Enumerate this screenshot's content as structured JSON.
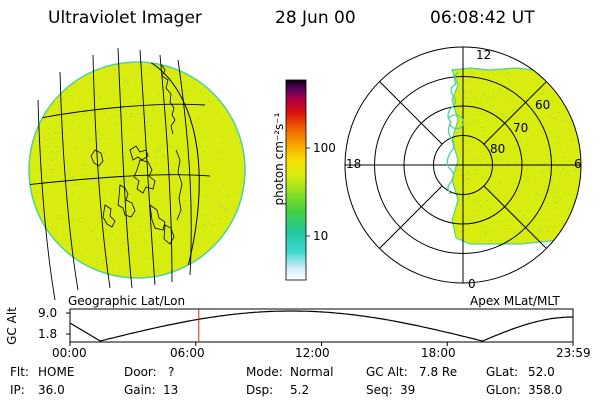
{
  "header": {
    "instrument": "Ultraviolet Imager",
    "date": "28 Jun 00",
    "time": "06:08:42 UT"
  },
  "left_panel": {
    "label": "Geographic Lat/Lon"
  },
  "right_panel": {
    "label": "Apex MLat/MLT",
    "mlt_labels": [
      "12",
      "18",
      "6",
      "0"
    ],
    "mlat_labels": [
      "60",
      "70",
      "80"
    ]
  },
  "colorbar": {
    "unit_label": "photon cm⁻²s⁻¹",
    "tick_labels": [
      "100",
      "10"
    ]
  },
  "altitude_plot": {
    "ylabel": "GC Alt",
    "y_ticks": [
      "9.0",
      "1.8"
    ],
    "x_ticks": [
      "00:00",
      "06:00",
      "12:00",
      "18:00",
      "23:59"
    ],
    "current_time_fraction": 0.256
  },
  "status": {
    "row1": [
      {
        "label": "Flt:",
        "value": "HOME"
      },
      {
        "label": "Door:",
        "value": "?"
      },
      {
        "label": "Mode:",
        "value": "Normal"
      },
      {
        "label": "GC Alt:",
        "value": "7.8 Re"
      },
      {
        "label": "GLat:",
        "value": "52.0"
      }
    ],
    "row2": [
      {
        "label": "IP:",
        "value": "36.0"
      },
      {
        "label": "Gain:",
        "value": "13"
      },
      {
        "label": "Dsp:",
        "value": "5.2"
      },
      {
        "label": "Seq:",
        "value": "39"
      },
      {
        "label": "GLon:",
        "value": "358.0"
      }
    ]
  },
  "colors": {
    "image_fill": "#d8ec10",
    "noise": "#b0e040",
    "edge": "#50d0a0",
    "marker": "#e02020"
  }
}
